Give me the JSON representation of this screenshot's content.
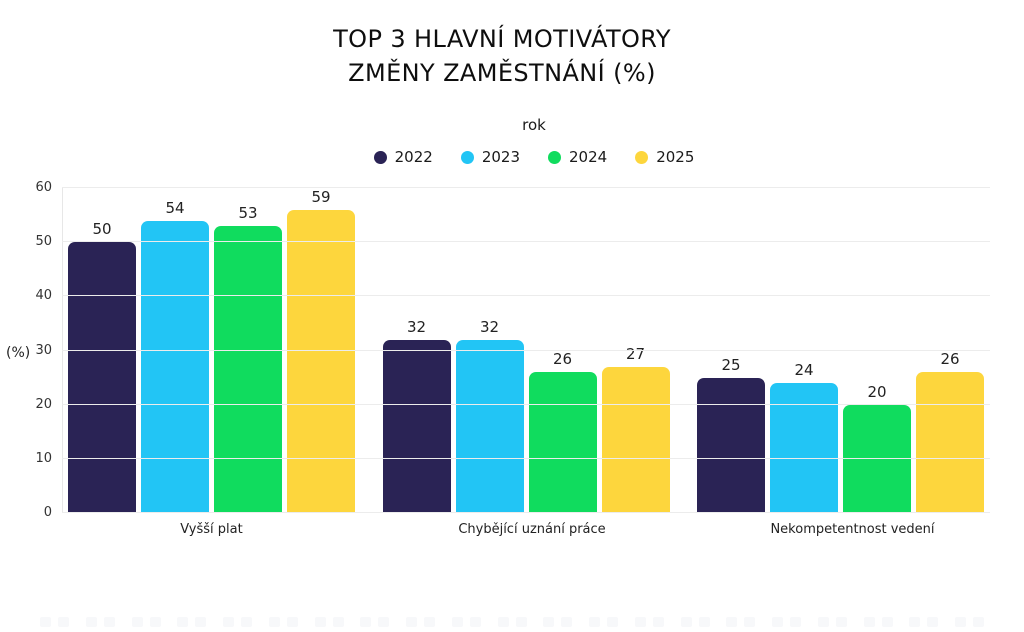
{
  "title": {
    "line1": "TOP 3 HLAVNÍ MOTIVÁTORY",
    "line2": "ZMĚNY ZAMĚSTNÁNÍ (%)"
  },
  "legend": {
    "title": "rok"
  },
  "chart_data": {
    "type": "bar",
    "title": "TOP 3 HLAVNÍ MOTIVÁTORY ZMĚNY ZAMĚSTNÁNÍ (%)",
    "legend_title": "rok",
    "legend_position": "top-center",
    "categories": [
      "Vyšší plat",
      "Chybějící uznání práce",
      "Nekompetentnost vedení"
    ],
    "series": [
      {
        "name": "2022",
        "color": "#2a2355",
        "values": [
          50,
          32,
          25
        ]
      },
      {
        "name": "2023",
        "color": "#22c5f5",
        "values": [
          54,
          32,
          24
        ]
      },
      {
        "name": "2024",
        "color": "#10dc5e",
        "values": [
          53,
          26,
          20
        ]
      },
      {
        "name": "2025",
        "color": "#fdd63d",
        "values": [
          59,
          27,
          26
        ]
      }
    ],
    "ylabel": "(%)",
    "yticks": [
      0,
      10,
      20,
      30,
      40,
      50,
      60
    ],
    "ylim": [
      0,
      60
    ],
    "grid": true
  }
}
